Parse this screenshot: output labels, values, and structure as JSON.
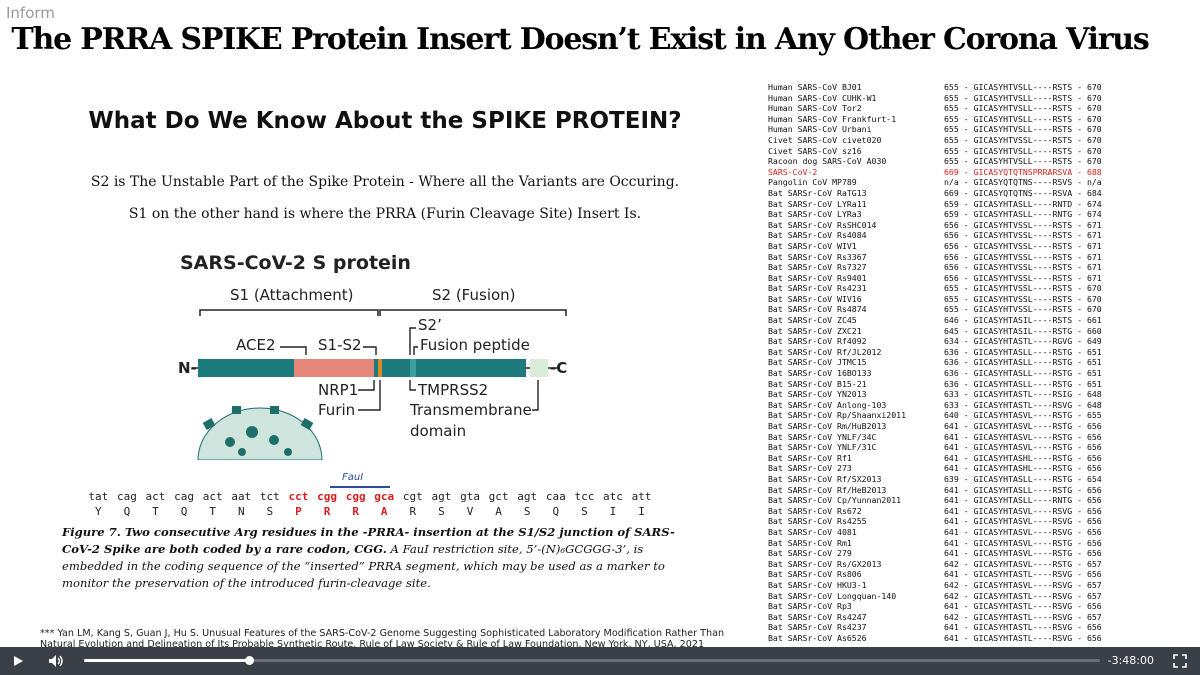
{
  "watermark": "Inform",
  "slide": {
    "title": "The PRRA SPIKE Protein Insert Doesn’t Exist in Any Other Corona Virus",
    "heading": "What Do We Know About the SPIKE PROTEIN?",
    "line1": "S2 is The Unstable Part of the Spike Protein - Where all the Variants are Occuring.",
    "line2": "S1 on the other hand is where the PRRA (Furin Cleavage Site) Insert Is."
  },
  "diagram": {
    "title": "SARS-CoV-2 S protein",
    "s1": "S1 (Attachment)",
    "s2": "S2 (Fusion)",
    "ace2": "ACE2",
    "s1s2": "S1-S2",
    "s2prime": "S2’",
    "fusion_peptide": "Fusion peptide",
    "n_term": "N-",
    "c_term": "-C",
    "nrp1": "NRP1",
    "furin": "Furin",
    "tmprss2": "TMPRSS2",
    "transmembrane": "Transmembrane",
    "domain": "domain",
    "colors": {
      "teal": "#1e7a7c",
      "salmon": "#e4877a",
      "orange": "#d98b2e",
      "pale": "#d9edd8"
    }
  },
  "sequence": {
    "faul_label": "FauI",
    "dna": [
      "tat",
      "cag",
      "act",
      "cag",
      "act",
      "aat",
      "tct",
      "cct",
      "cgg",
      "cgg",
      "gca",
      "cgt",
      "agt",
      "gta",
      "gct",
      "agt",
      "caa",
      "tcc",
      "atc",
      "att"
    ],
    "aa": [
      "Y",
      "Q",
      "T",
      "Q",
      "T",
      "N",
      "S",
      "P",
      "R",
      "R",
      "A",
      "R",
      "S",
      "V",
      "A",
      "S",
      "Q",
      "S",
      "I",
      "I"
    ],
    "highlight_range": [
      7,
      10
    ]
  },
  "caption": {
    "bold": "Figure 7. Two consecutive Arg residues in the -PRRA- insertion at the S1/S2 junction of SARS-CoV-2 Spike are both coded by a rare codon, CGG.",
    "rest": " A FauI restriction site, 5’-(N)₆GCGGG-3’, is embedded in the coding sequence of the “inserted” PRRA segment, which may be used as a marker to monitor the preservation of the introduced furin-cleavage site."
  },
  "reference": "*** Yan LM, Kang S, Guan J, Hu S. Unusual Features of the SARS-CoV-2 Genome Suggesting Sophisticated Laboratory Modification Rather Than Natural Evolution and Delineation of Its Probable Synthetic Route. Rule of Law Society & Rule of Law Foundation, New York, NY, USA, 2021",
  "alignment": [
    {
      "species": "Human SARS-CoV BJ01",
      "seq": "655 - GICASYHTVSLL----RSTS - 670"
    },
    {
      "species": "Human SARS-CoV CUHK-W1",
      "seq": "655 - GICASYHTVSLL----RSTS - 670"
    },
    {
      "species": "Human SARS-CoV Tor2",
      "seq": "655 - GICASYHTVSLL----RSTS - 670"
    },
    {
      "species": "Human SARS-CoV Frankfurt-1",
      "seq": "655 - GICASYHTVSLL----RSTS - 670"
    },
    {
      "species": "Human SARS-CoV Urbani",
      "seq": "655 - GICASYHTVSLL----RSTS - 670"
    },
    {
      "species": "Civet SARS-CoV civet020",
      "seq": "655 - GICASYHTVSSL----RSTS - 670"
    },
    {
      "species": "Civet SARS-CoV sz16",
      "seq": "655 - GICASYHTVSLL----RSTS - 670"
    },
    {
      "species": "Racoon dog SARS-CoV A030",
      "seq": "655 - GICASYHTVSLL----RSTS - 670"
    },
    {
      "species": "SARS-CoV-2",
      "seq": "669 - GICASYQTQTNSPRRARSVA - 688",
      "highlight": true
    },
    {
      "species": "Pangolin CoV MP789",
      "seq": "n/a - GICASYQTQTNS----RSVS - n/a"
    },
    {
      "species": "Bat SARSr-CoV RaTG13",
      "seq": "669 - GICASYQTQTNS----RSVA - 684"
    },
    {
      "species": "Bat SARSr-CoV LYRa11",
      "seq": "659 - GICASYHTASLL----RNTD - 674"
    },
    {
      "species": "Bat SARSr-CoV LYRa3",
      "seq": "659 - GICASYHTASLL----RNTG - 674"
    },
    {
      "species": "Bat SARSr-CoV RsSHC014",
      "seq": "656 - GICASYHTVSSL----RSTS - 671"
    },
    {
      "species": "Bat SARSr-CoV Rs4084",
      "seq": "656 - GICASYHTVSSL----RSTS - 671"
    },
    {
      "species": "Bat SARSr-CoV WIV1",
      "seq": "656 - GICASYHTVSSL----RSTS - 671"
    },
    {
      "species": "Bat SARSr-CoV Rs3367",
      "seq": "656 - GICASYHTVSSL----RSTS - 671"
    },
    {
      "species": "Bat SARSr-CoV Rs7327",
      "seq": "656 - GICASYHTVSSL----RSTS - 671"
    },
    {
      "species": "Bat SARSr-CoV Rs9401",
      "seq": "656 - GICASYHTVSSL----RSTS - 671"
    },
    {
      "species": "Bat SARSr-CoV Rs4231",
      "seq": "655 - GICASYHTVSSL----RSTS - 670"
    },
    {
      "species": "Bat SARSr-CoV WIV16",
      "seq": "655 - GICASYHTVSSL----RSTS - 670"
    },
    {
      "species": "Bat SARSr-CoV Rs4874",
      "seq": "655 - GICASYHTVSSL----RSTS - 670"
    },
    {
      "species": "Bat SARSr-CoV ZC45",
      "seq": "646 - GICASYHTASIL----RSTS - 661"
    },
    {
      "species": "Bat SARSr-CoV ZXC21",
      "seq": "645 - GICASYHTASIL----RSTG - 660"
    },
    {
      "species": "Bat SARSr-CoV Rf4092",
      "seq": "634 - GICASYHTASTL----RGVG - 649"
    },
    {
      "species": "Bat SARSr-CoV Rf/JL2012",
      "seq": "636 - GICASYHTASLL----RSTG - 651"
    },
    {
      "species": "Bat SARSr-CoV JTMC15",
      "seq": "636 - GICASYHTASLL----RSTG - 651"
    },
    {
      "species": "Bat SARSr-CoV 16BO133",
      "seq": "636 - GICASYHTASLL----RSTG - 651"
    },
    {
      "species": "Bat SARSr-CoV B15-21",
      "seq": "636 - GICASYHTASLL----RSTG - 651"
    },
    {
      "species": "Bat SARSr-CoV YN2013",
      "seq": "633 - GICASYHTASTL----RSIG - 648"
    },
    {
      "species": "Bat SARSr-CoV Anlong-103",
      "seq": "633 - GICASYHTASTL----RSVG - 648"
    },
    {
      "species": "Bat SARSr-CoV Rp/Shaanxi2011",
      "seq": "640 - GICASYHTASVL----RSTG - 655"
    },
    {
      "species": "Bat SARSr-CoV Rm/HuB2013",
      "seq": "641 - GICASYHTASVL----RSTG - 656"
    },
    {
      "species": "Bat SARSr-CoV YNLF/34C",
      "seq": "641 - GICASYHTASVL----RSTG - 656"
    },
    {
      "species": "Bat SARSr-CoV YNLF/31C",
      "seq": "641 - GICASYHTASVL----RSTG - 656"
    },
    {
      "species": "Bat SARSr-CoV Rf1",
      "seq": "641 - GICASYHTASHL----RSTG - 656"
    },
    {
      "species": "Bat SARSr-CoV 273",
      "seq": "641 - GICASYHTASHL----RSTG - 656"
    },
    {
      "species": "Bat SARSr-CoV Rf/SX2013",
      "seq": "639 - GICASYHTASLL----RSTG - 654"
    },
    {
      "species": "Bat SARSr-CoV Rf/HeB2013",
      "seq": "641 - GICASYHTASLL----RSTG - 656"
    },
    {
      "species": "Bat SARSr-CoV Cp/Yunnan2011",
      "seq": "641 - GICASYHTASLL----RNTG - 656"
    },
    {
      "species": "Bat SARSr-CoV Rs672",
      "seq": "641 - GICASYHTASVL----RSVG - 656"
    },
    {
      "species": "Bat SARSr-CoV Rs4255",
      "seq": "641 - GICASYHTASVL----RSVG - 656"
    },
    {
      "species": "Bat SARSr-CoV 4081",
      "seq": "641 - GICASYHTASVL----RSVG - 656"
    },
    {
      "species": "Bat SARSr-CoV Rm1",
      "seq": "641 - GICASYHTASVL----RSTG - 656"
    },
    {
      "species": "Bat SARSr-CoV 279",
      "seq": "641 - GICASYHTASVL----RSTG - 656"
    },
    {
      "species": "Bat SARSr-CoV Rs/GX2013",
      "seq": "642 - GICASYHTASVL----RSTG - 657"
    },
    {
      "species": "Bat SARSr-CoV Rs806",
      "seq": "641 - GICASYHTASTL----RSVG - 656"
    },
    {
      "species": "Bat SARSr-CoV HKU3-1",
      "seq": "642 - GICASYHTASVL----RSVG - 657"
    },
    {
      "species": "Bat SARSr-CoV Longquan-140",
      "seq": "642 - GICASYHTASTL----RSVG - 657"
    },
    {
      "species": "Bat SARSr-CoV Rp3",
      "seq": "641 - GICASYHTASTL----RSVG - 656"
    },
    {
      "species": "Bat SARSr-CoV Rs4247",
      "seq": "642 - GICASYHTASTL----RSVG - 657"
    },
    {
      "species": "Bat SARSr-CoV Rs4237",
      "seq": "641 - GICASYHTASTL----RSVG - 656"
    },
    {
      "species": "Bat SARSr-CoV As6526",
      "seq": "641 - GICASYHTASTL----RSVG - 656"
    }
  ],
  "player": {
    "time": "-3:48:00",
    "progress": 0.162
  }
}
